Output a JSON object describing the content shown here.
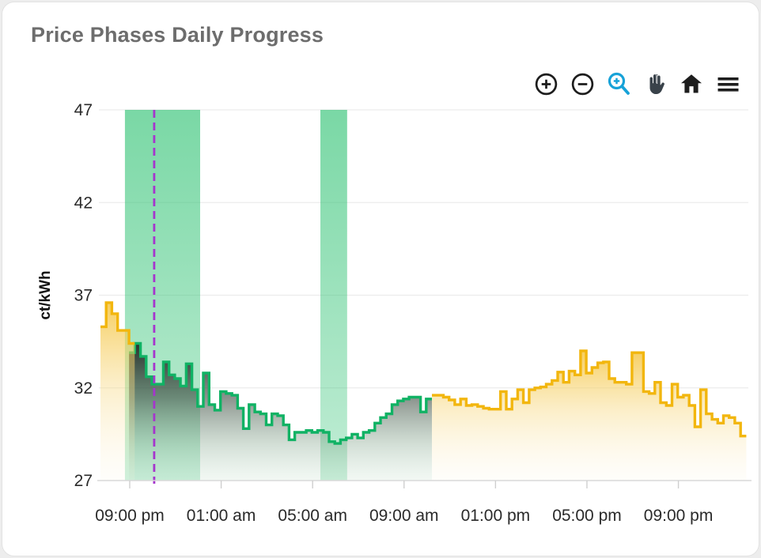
{
  "card": {
    "title": "Price Phases Daily Progress"
  },
  "toolbar": {
    "icons": [
      "zoom-in",
      "zoom-out",
      "box-zoom",
      "pan",
      "home",
      "menu"
    ],
    "active_color": "#17a2d8",
    "icon_color": "#1d1d1d",
    "hand_color": "#39424a"
  },
  "chart_data": {
    "type": "area",
    "title": "Price Phases Daily Progress",
    "xlabel": "",
    "ylabel": "ct/kWh",
    "ylim": [
      27,
      47
    ],
    "yticks": [
      27,
      32,
      37,
      42,
      47
    ],
    "grid": "horizontal-only",
    "legend": "none",
    "step_minutes": 15,
    "x_total_hours": 28.34,
    "xticks": [
      {
        "t": 1.28,
        "label": "09:00 pm"
      },
      {
        "t": 5.28,
        "label": "01:00 am"
      },
      {
        "t": 9.28,
        "label": "05:00 am"
      },
      {
        "t": 13.28,
        "label": "09:00 am"
      },
      {
        "t": 17.28,
        "label": "01:00 pm"
      },
      {
        "t": 21.28,
        "label": "05:00 pm"
      },
      {
        "t": 25.28,
        "label": "09:00 pm"
      }
    ],
    "bands": [
      {
        "name": "cheap-phase-1",
        "t0": 1.07,
        "t1": 4.36
      },
      {
        "name": "cheap-phase-2",
        "t0": 9.62,
        "t1": 10.79
      }
    ],
    "now_line": {
      "t": 2.35,
      "style": "dashed"
    },
    "colors": {
      "yellow_line": "#f2b60e",
      "green_line": "#10b264",
      "band_green": "40,192,110",
      "now_line": "#a635cd",
      "grid": "#ececec",
      "axis_line": "#d9d9d9",
      "tick_mark": "#cfcfcf",
      "tick_text": "#2a2a2a",
      "axis_title_text": "#111111"
    },
    "series": [
      {
        "name": "price-green-phase",
        "color": "#10b264",
        "fill": "dark",
        "t0": 1.25,
        "values": [
          33.9,
          34.4,
          33.7,
          32.6,
          32.2,
          32.2,
          33.4,
          32.7,
          32.5,
          32.1,
          33.3,
          31.9,
          31.0,
          32.8,
          31.1,
          30.8,
          31.8,
          31.7,
          31.6,
          30.9,
          29.8,
          31.1,
          30.7,
          30.6,
          30.0,
          30.6,
          30.5,
          30.0,
          29.2,
          29.6,
          29.6,
          29.7,
          29.6,
          29.7,
          29.6,
          29.1,
          29.0,
          29.2,
          29.3,
          29.5,
          29.3,
          29.6,
          29.7,
          30.1,
          30.4,
          30.6,
          31.1,
          31.3,
          31.4,
          31.5,
          31.5,
          30.7,
          31.4
        ]
      },
      {
        "name": "price-early-yellow",
        "color": "#f2b60e",
        "fill": "yellow",
        "t0": 0,
        "values": [
          35.3,
          36.6,
          36.0,
          35.1,
          35.1,
          34.4
        ]
      },
      {
        "name": "price-late-yellow",
        "color": "#f2b60e",
        "fill": "yellow",
        "t0": 14.5,
        "values": [
          31.6,
          31.6,
          31.5,
          31.35,
          31.1,
          31.4,
          31.05,
          31.1,
          31.0,
          30.9,
          30.85,
          30.85,
          31.8,
          30.85,
          31.4,
          31.9,
          31.2,
          31.9,
          32.0,
          32.05,
          32.2,
          32.4,
          32.85,
          32.3,
          32.9,
          32.7,
          34.0,
          32.8,
          33.1,
          33.35,
          33.4,
          32.5,
          32.3,
          32.3,
          32.2,
          33.9,
          33.9,
          31.8,
          31.7,
          32.3,
          31.2,
          31.05,
          32.2,
          31.5,
          31.6,
          31.05,
          29.9,
          31.9,
          30.6,
          30.3,
          30.1,
          30.5,
          30.4,
          30.1,
          29.4
        ]
      }
    ]
  }
}
